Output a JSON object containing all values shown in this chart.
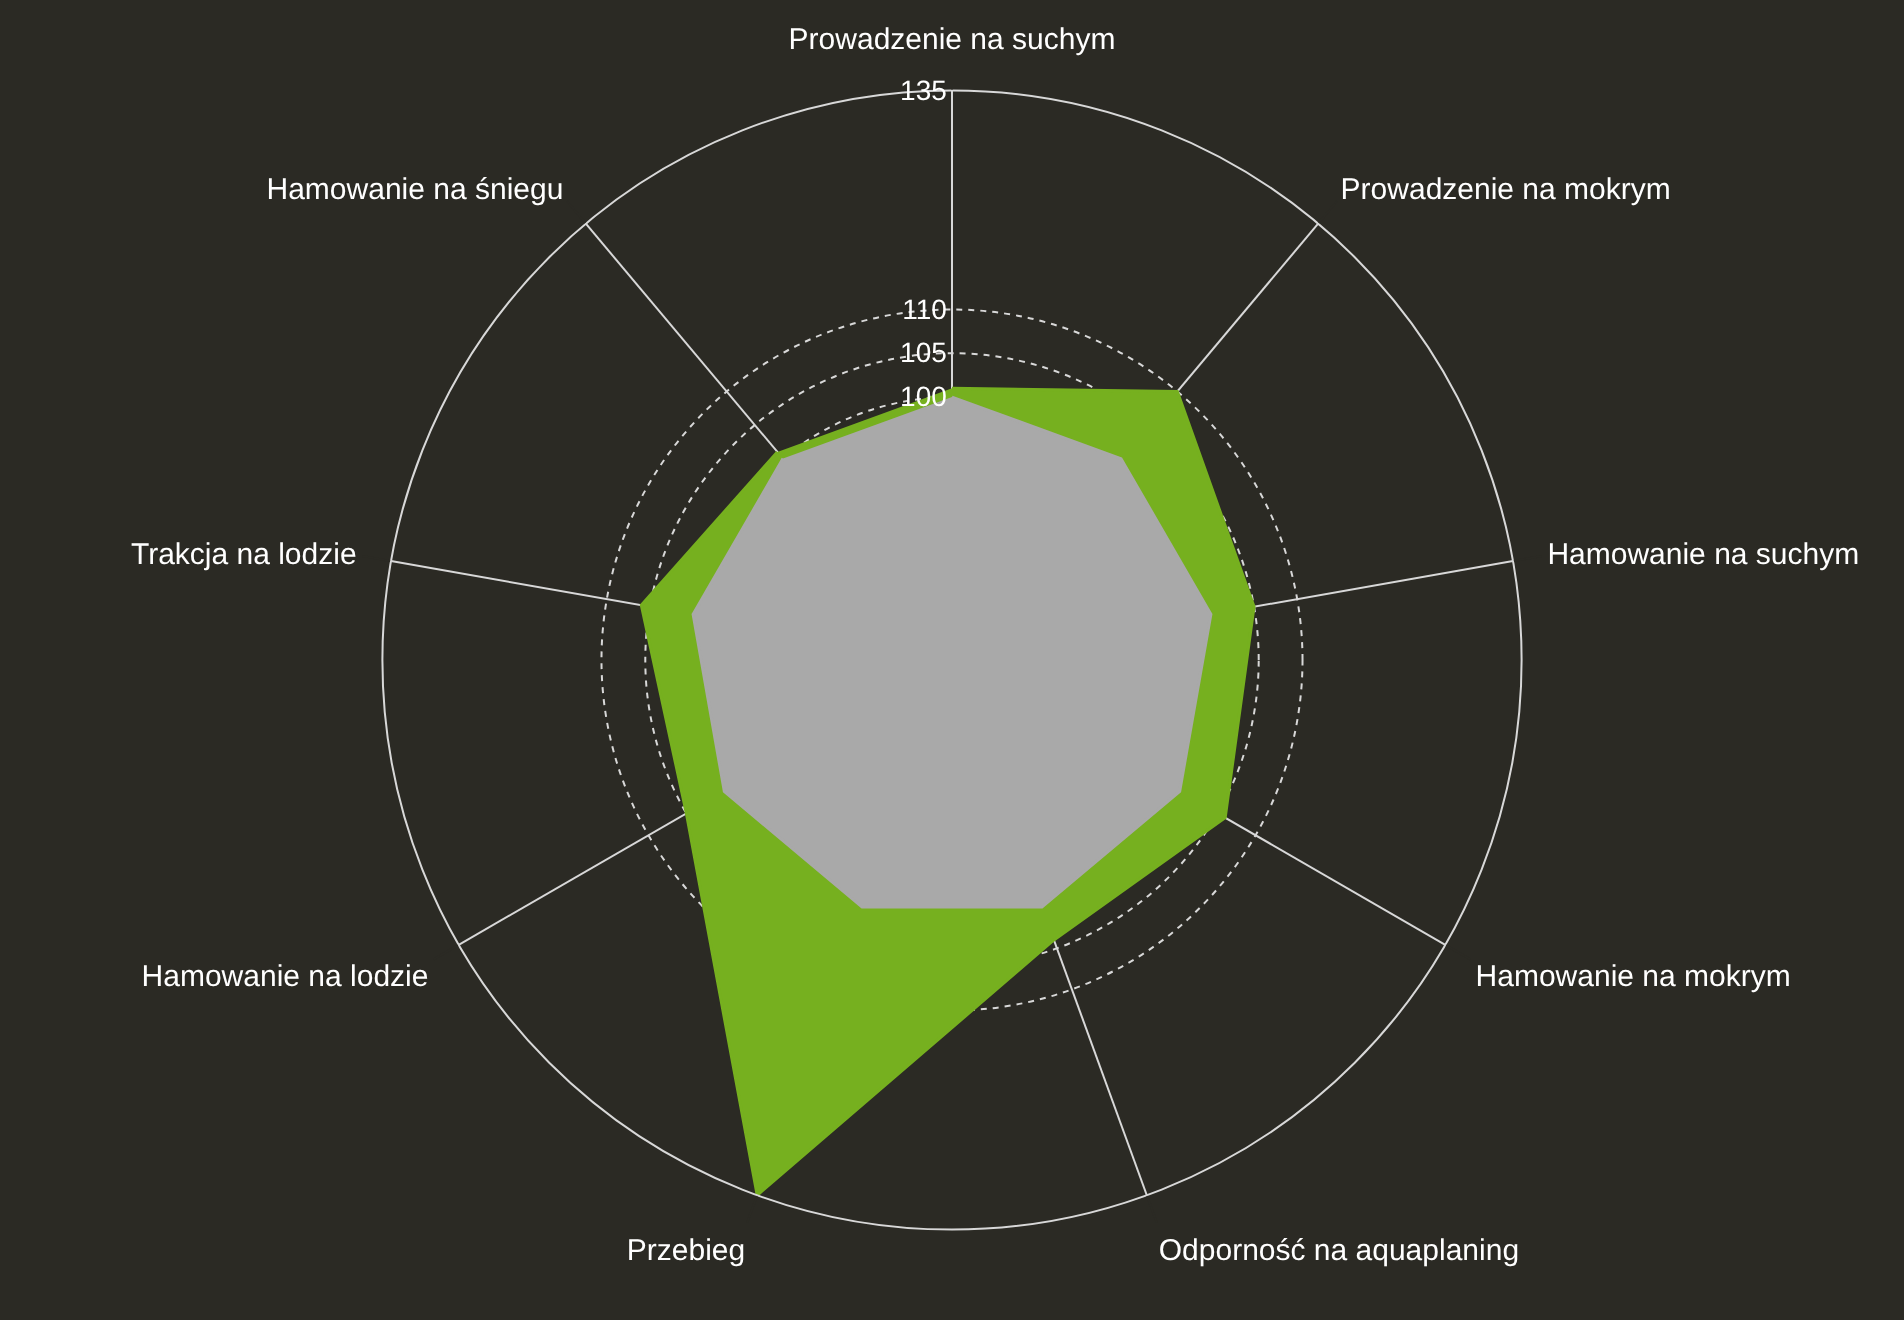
{
  "chart_data": {
    "type": "radar",
    "categories": [
      "Prowadzenie na suchym",
      "Prowadzenie na mokrym",
      "Hamowanie na suchym",
      "Hamowanie na mokrym",
      "Odporność na aquaplaning",
      "Przebieg",
      "Hamowanie na lodzie",
      "Trakcja na lodzie",
      "Hamowanie na śniegu"
    ],
    "series": [
      {
        "color": "#76b01f",
        "values": [
          101,
          110,
          105,
          106,
          104,
          135,
          105,
          106,
          101
        ]
      },
      {
        "color": "#a9a9a9",
        "values": [
          100,
          100,
          100,
          100,
          100,
          100,
          100,
          100,
          100
        ]
      }
    ],
    "ylim": [
      70,
      135
    ],
    "yticks": [
      100,
      105,
      110,
      135
    ],
    "grid": true,
    "marker": "none"
  }
}
